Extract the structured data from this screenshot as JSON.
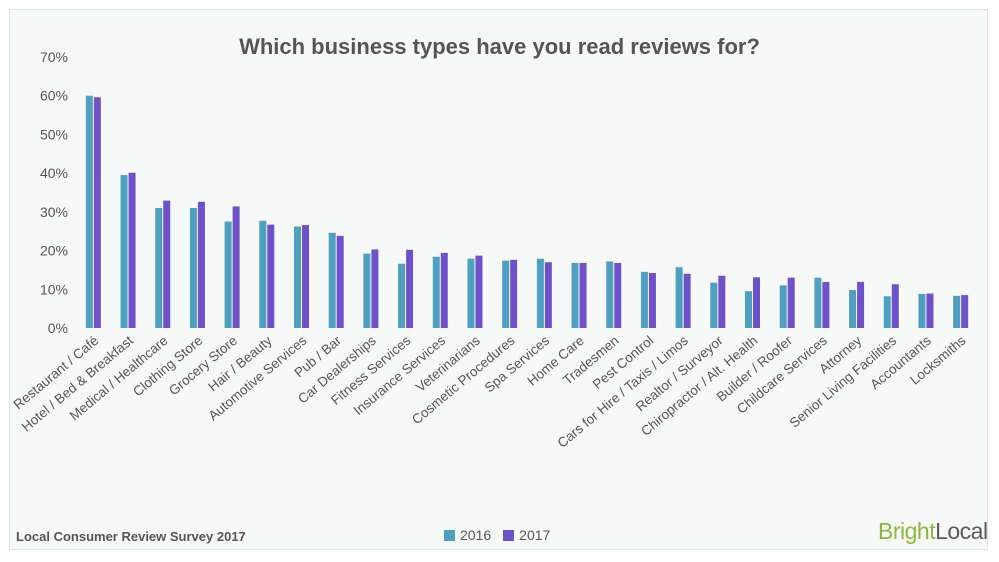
{
  "chart_data": {
    "type": "bar",
    "title": "Which business types have you read reviews for?",
    "xlabel": "",
    "ylabel": "",
    "ylim": [
      0,
      70
    ],
    "yticks": [
      "0%",
      "10%",
      "20%",
      "30%",
      "40%",
      "50%",
      "60%",
      "70%"
    ],
    "grid": false,
    "legend_position": "bottom-center",
    "categories": [
      "Restaurant / Café",
      "Hotel / Bed & Breakfast",
      "Medical / Healthcare",
      "Clothing Store",
      "Grocery Store",
      "Hair / Beauty",
      "Automotive Services",
      "Pub / Bar",
      "Car Dealerships",
      "Fitness Services",
      "Insurance Services",
      "Veterinarians",
      "Cosmetic Procedures",
      "Spa Services",
      "Home Care",
      "Tradesmen",
      "Pest Control",
      "Cars for Hire / Taxis / Limos",
      "Realtor / Surveyor",
      "Chiropractor / Alt. Health",
      "Builder / Roofer",
      "Childcare Services",
      "Attorney",
      "Senior Living Facilities",
      "Accountants",
      "Locksmiths"
    ],
    "series": [
      {
        "name": "2016",
        "color": "#4f9fc0",
        "values": [
          60,
          39.5,
          31,
          31,
          27.5,
          27.7,
          26.2,
          24.6,
          19.2,
          16.6,
          18.4,
          17.9,
          17.4,
          17.9,
          16.8,
          17.2,
          14.5,
          15.7,
          11.7,
          9.5,
          11,
          13,
          9.8,
          8.2,
          8.8,
          8.3
        ]
      },
      {
        "name": "2017",
        "color": "#6f52c9",
        "values": [
          59.6,
          40.1,
          32.9,
          32.6,
          31.4,
          26.7,
          26.6,
          23.8,
          20.3,
          20.2,
          19.4,
          18.7,
          17.6,
          17,
          16.8,
          16.8,
          14.2,
          14,
          13.5,
          13.1,
          13,
          11.9,
          11.9,
          11.3,
          8.9,
          8.5
        ]
      }
    ]
  },
  "footer": {
    "source": "Local Consumer Review Survey 2017",
    "brand_part1": "Bright",
    "brand_part2": "Local"
  },
  "legend": {
    "color_2016": "#4f9fc0",
    "color_2017": "#6f52c9"
  }
}
